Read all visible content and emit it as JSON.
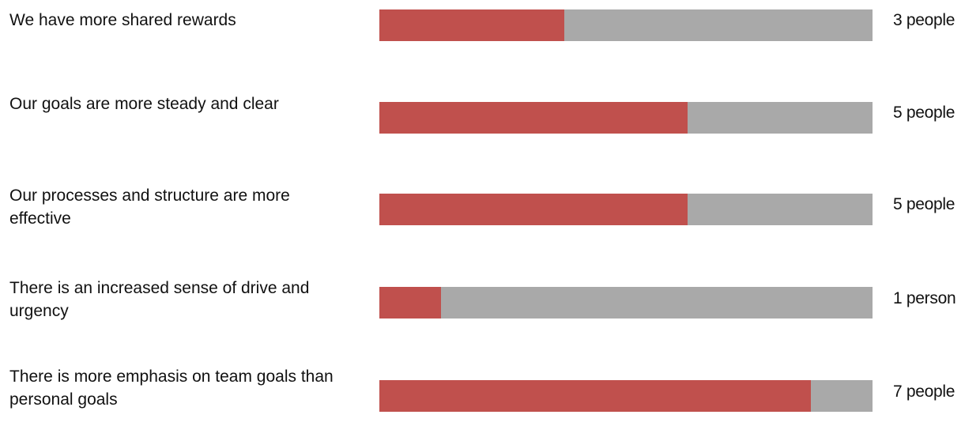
{
  "colors": {
    "fill": "#c0504d",
    "track": "#a9a9a9"
  },
  "chart_data": {
    "type": "bar",
    "orientation": "horizontal",
    "max": 8,
    "categories": [
      "We have more shared rewards",
      "Our goals are more steady and clear",
      "Our processes and structure are more effective",
      "There is an increased sense of drive and urgency",
      "There is more emphasis on team goals than personal goals"
    ],
    "values": [
      3,
      5,
      5,
      1,
      7
    ],
    "value_labels": [
      "3 people",
      "5 people",
      "5 people",
      "1 person",
      "7 people"
    ]
  }
}
